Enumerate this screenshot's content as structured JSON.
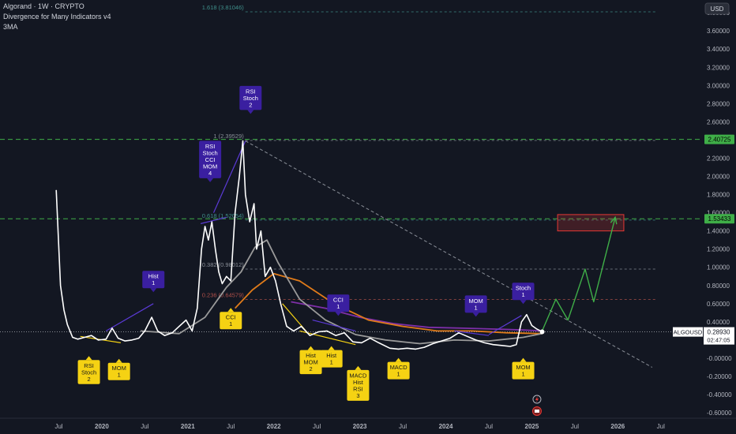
{
  "header": {
    "title": "Algorand · 1W · CRYPTO",
    "indicator": "Divergence for Many Indicators v4",
    "overlay": "3MA"
  },
  "currency_button": "USD",
  "price_tag": {
    "symbol": "ALGOUSD",
    "price": "0.28930",
    "countdown": "02:47:05"
  },
  "colors": {
    "background": "#131722",
    "price_line": "#ffffff",
    "ma_gray": "#9a9a9a",
    "ma_orange": "#e07b1a",
    "ma_purple": "#7e2fa8",
    "bearish_div": "#5b3ad6",
    "bullish_div": "#f5d213",
    "projection": "#3fae48",
    "level_line": "#3fae48",
    "target_box": "#e53935"
  },
  "chart_data": {
    "type": "line",
    "title": "Algorand · 1W · CRYPTO",
    "xlabel": "",
    "ylabel": "",
    "ylim": [
      -0.66,
      3.94
    ],
    "grid": false,
    "x_ticks": [
      "Jul",
      "2020",
      "Jul",
      "2021",
      "Jul",
      "2022",
      "Jul",
      "2023",
      "Jul",
      "2024",
      "Jul",
      "2025",
      "Jul",
      "2026",
      "Jul"
    ],
    "y_ticks": [
      "3.80000",
      "3.60000",
      "3.40000",
      "3.20000",
      "3.00000",
      "2.80000",
      "2.60000",
      "2.20000",
      "2.00000",
      "1.80000",
      "1.60000",
      "1.40000",
      "1.20000",
      "1.00000",
      "0.80000",
      "0.60000",
      "0.40000",
      "0.20000",
      "-0.00000",
      "-0.20000",
      "-0.40000",
      "-0.60000"
    ],
    "series": [
      {
        "name": "ALGOUSD",
        "x": [
          2019.47,
          2019.52,
          2019.56,
          2019.6,
          2019.66,
          2019.72,
          2019.8,
          2019.88,
          2019.96,
          2020.05,
          2020.12,
          2020.19,
          2020.27,
          2020.35,
          2020.43,
          2020.5,
          2020.58,
          2020.65,
          2020.73,
          2020.82,
          2020.9,
          2020.98,
          2021.05,
          2021.11,
          2021.16,
          2021.2,
          2021.24,
          2021.28,
          2021.32,
          2021.36,
          2021.4,
          2021.45,
          2021.5,
          2021.55,
          2021.6,
          2021.64,
          2021.67,
          2021.72,
          2021.77,
          2021.8,
          2021.85,
          2021.9,
          2021.96,
          2022.02,
          2022.08,
          2022.15,
          2022.23,
          2022.32,
          2022.42,
          2022.52,
          2022.62,
          2022.72,
          2022.82,
          2022.92,
          2023.02,
          2023.12,
          2023.22,
          2023.35,
          2023.45,
          2023.55,
          2023.65,
          2023.75,
          2023.85,
          2023.95,
          2024.05,
          2024.15,
          2024.25,
          2024.35,
          2024.45,
          2024.55,
          2024.65,
          2024.75,
          2024.82,
          2024.88,
          2024.94,
          2025.0,
          2025.06,
          2025.12
        ],
        "values": [
          1.85,
          0.8,
          0.53,
          0.37,
          0.23,
          0.21,
          0.23,
          0.25,
          0.2,
          0.21,
          0.33,
          0.22,
          0.19,
          0.2,
          0.22,
          0.3,
          0.45,
          0.3,
          0.25,
          0.28,
          0.35,
          0.42,
          0.3,
          0.55,
          1.2,
          1.45,
          1.3,
          1.5,
          1.2,
          0.95,
          0.82,
          0.9,
          0.85,
          1.6,
          2.0,
          2.39,
          1.8,
          1.5,
          1.7,
          1.2,
          1.4,
          0.9,
          1.0,
          0.85,
          0.6,
          0.35,
          0.3,
          0.35,
          0.25,
          0.29,
          0.3,
          0.25,
          0.28,
          0.18,
          0.17,
          0.22,
          0.17,
          0.11,
          0.1,
          0.11,
          0.1,
          0.12,
          0.16,
          0.19,
          0.22,
          0.28,
          0.24,
          0.2,
          0.17,
          0.15,
          0.14,
          0.13,
          0.15,
          0.4,
          0.48,
          0.36,
          0.32,
          0.29
        ]
      },
      {
        "name": "",
        "x": [
          2020.45,
          2020.9,
          2021.2,
          2021.45,
          2021.62,
          2021.78,
          2021.92,
          2022.05,
          2022.3,
          2022.6,
          2022.95,
          2023.3,
          2023.7,
          2024.1,
          2024.5,
          2024.9,
          2025.12
        ],
        "values": [
          0.3,
          0.27,
          0.45,
          0.78,
          0.95,
          1.22,
          1.3,
          1.05,
          0.65,
          0.42,
          0.26,
          0.2,
          0.16,
          0.2,
          0.19,
          0.23,
          0.27
        ]
      },
      {
        "name": "",
        "x": [
          2021.55,
          2021.75,
          2022.0,
          2022.3,
          2022.7,
          2023.1,
          2023.5,
          2023.9,
          2024.3,
          2024.7,
          2025.12
        ],
        "values": [
          0.55,
          0.75,
          0.93,
          0.85,
          0.6,
          0.42,
          0.35,
          0.3,
          0.3,
          0.28,
          0.27
        ]
      },
      {
        "name": "",
        "x": [
          2022.2,
          2022.6,
          2023.0,
          2023.4,
          2023.8,
          2024.2,
          2024.6,
          2024.9,
          2025.12
        ],
        "values": [
          0.62,
          0.55,
          0.45,
          0.38,
          0.34,
          0.33,
          0.32,
          0.31,
          0.3
        ]
      }
    ],
    "projection": {
      "x": [
        2025.12,
        2025.28,
        2025.42,
        2025.62,
        2025.72,
        2025.97
      ],
      "values": [
        0.3,
        0.65,
        0.42,
        0.98,
        0.62,
        1.55
      ]
    },
    "fib_levels": [
      {
        "label": "1.618 (3.81046)",
        "value": 3.81
      },
      {
        "label": "1 (2.39529)",
        "value": 2.395
      },
      {
        "label": "0.618 (1.52054)",
        "value": 1.52
      },
      {
        "label": "0.382 (0.98012)",
        "value": 0.98
      },
      {
        "label": "0.236 (0.64579)",
        "value": 0.646
      }
    ],
    "horizontal_levels": [
      {
        "label": "2.40725",
        "value": 2.407
      },
      {
        "label": "1.53433",
        "value": 1.534
      }
    ],
    "trendline": {
      "x": [
        2021.67,
        2026.4
      ],
      "values": [
        2.39,
        -0.1
      ]
    },
    "target_box": {
      "x": [
        2025.3,
        2026.07
      ],
      "values": [
        1.4,
        1.58
      ]
    },
    "divergence_lines": [
      {
        "kind": "bearish",
        "x": [
          2020.05,
          2020.6
        ],
        "values": [
          0.3,
          0.6
        ]
      },
      {
        "kind": "bearish",
        "x": [
          2021.15,
          2021.45
        ],
        "values": [
          1.48,
          1.55
        ]
      },
      {
        "kind": "bearish",
        "x": [
          2021.3,
          2021.67
        ],
        "values": [
          1.6,
          2.39
        ]
      },
      {
        "kind": "bearish",
        "x": [
          2022.45,
          2022.95
        ],
        "values": [
          0.42,
          0.3
        ]
      },
      {
        "kind": "bearish",
        "x": [
          2024.1,
          2024.5
        ],
        "values": [
          0.3,
          0.25
        ]
      },
      {
        "kind": "bearish",
        "x": [
          2024.5,
          2024.88
        ],
        "values": [
          0.26,
          0.47
        ]
      },
      {
        "kind": "bullish",
        "x": [
          2019.75,
          2020.22
        ],
        "values": [
          0.24,
          0.17
        ]
      },
      {
        "kind": "bullish",
        "x": [
          2022.1,
          2022.42
        ],
        "values": [
          0.6,
          0.25
        ]
      },
      {
        "kind": "bullish",
        "x": [
          2022.3,
          2022.95
        ],
        "values": [
          0.3,
          0.15
        ]
      }
    ],
    "labels": [
      {
        "text": "Hist\n1",
        "kind": "bearish",
        "x": 2020.6,
        "value": 0.77
      },
      {
        "text": "RSI\nStoch\nCCI\nMOM\n4",
        "kind": "bearish",
        "x": 2021.26,
        "value": 1.98
      },
      {
        "text": "RSI\nStoch\n2",
        "kind": "bearish",
        "x": 2021.73,
        "value": 2.73
      },
      {
        "text": "CCI\n1",
        "kind": "bearish",
        "x": 2022.75,
        "value": 0.51
      },
      {
        "text": "MOM\n1",
        "kind": "bearish",
        "x": 2024.35,
        "value": 0.5
      },
      {
        "text": "Stoch\n1",
        "kind": "bearish",
        "x": 2024.9,
        "value": 0.64
      },
      {
        "text": "CCI\n1",
        "kind": "bullish",
        "x": 2021.5,
        "value": 0.51
      },
      {
        "text": "RSI\nStoch\n2",
        "kind": "bullish",
        "x": 2019.85,
        "value": -0.02
      },
      {
        "text": "MOM\n1",
        "kind": "bullish",
        "x": 2020.2,
        "value": -0.05
      },
      {
        "text": "Hist\nMOM\n2",
        "kind": "bullish",
        "x": 2022.43,
        "value": 0.09
      },
      {
        "text": "Hist\n1",
        "kind": "bullish",
        "x": 2022.67,
        "value": 0.09
      },
      {
        "text": "MACD\nHist\nRSI\n3",
        "kind": "bullish",
        "x": 2022.98,
        "value": -0.13
      },
      {
        "text": "MACD\n1",
        "kind": "bullish",
        "x": 2023.45,
        "value": -0.04
      },
      {
        "text": "MOM\n1",
        "kind": "bullish",
        "x": 2024.9,
        "value": -0.04
      }
    ]
  }
}
